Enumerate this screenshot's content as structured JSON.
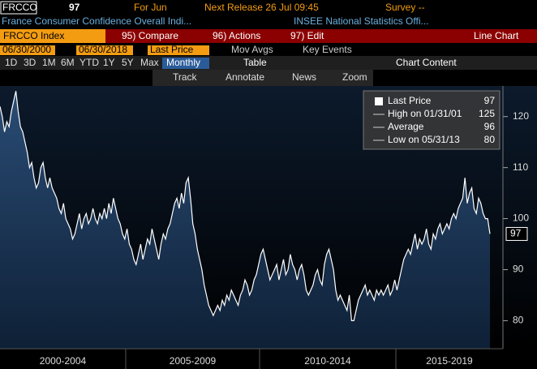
{
  "header": {
    "ticker": "FRCCO",
    "price": 97,
    "period": "For Jun",
    "next_release": "Next Release 26 Jul 09:45",
    "survey": "Survey --",
    "description": "France Consumer Confidence Overall Indi...",
    "source": "INSEE National Statistics Offi..."
  },
  "toolbar": {
    "security": "FRCCO Index",
    "menu": [
      "95) Compare",
      "96) Actions",
      "97) Edit"
    ],
    "view": "Line Chart",
    "start_date": "06/30/2000",
    "end_date": "06/30/2018",
    "field": "Last Price",
    "options": [
      "Mov Avgs",
      "Key Events"
    ],
    "ranges": [
      "1D",
      "3D",
      "1M",
      "6M",
      "YTD",
      "1Y",
      "5Y",
      "Max"
    ],
    "frequency": "Monthly",
    "table": "Table",
    "chart_content": "Chart Content",
    "tools": [
      "Track",
      "Annotate",
      "News",
      "Zoom"
    ]
  },
  "chart_data": {
    "type": "line",
    "color": "#ffffff",
    "values": [
      122,
      120,
      117,
      119,
      118,
      121,
      123,
      125,
      121,
      118,
      117,
      115,
      113,
      110,
      111,
      108,
      106,
      107,
      110,
      111,
      108,
      106,
      108,
      106,
      105,
      104,
      102,
      101,
      103,
      100,
      99,
      98,
      96,
      97,
      99,
      101,
      98,
      100,
      101,
      99,
      100,
      102,
      100,
      99,
      101,
      100,
      102,
      100,
      103,
      101,
      104,
      102,
      100,
      99,
      97,
      96,
      98,
      95,
      94,
      92,
      91,
      93,
      95,
      92,
      94,
      96,
      95,
      98,
      96,
      94,
      92,
      95,
      97,
      96,
      98,
      99,
      101,
      103,
      104,
      102,
      105,
      103,
      107,
      108,
      104,
      99,
      97,
      94,
      92,
      90,
      87,
      85,
      83,
      82,
      81,
      82,
      83,
      82,
      84,
      83,
      85,
      84,
      86,
      85,
      84,
      83,
      85,
      86,
      88,
      87,
      85,
      86,
      88,
      89,
      91,
      93,
      94,
      92,
      90,
      88,
      89,
      90,
      91,
      88,
      90,
      92,
      89,
      90,
      93,
      91,
      90,
      88,
      90,
      91,
      89,
      86,
      85,
      86,
      87,
      89,
      90,
      88,
      87,
      91,
      93,
      94,
      92,
      90,
      86,
      84,
      85,
      84,
      83,
      82,
      85,
      80,
      80,
      82,
      84,
      85,
      86,
      87,
      85,
      86,
      85,
      84,
      86,
      85,
      86,
      85,
      86,
      87,
      85,
      86,
      88,
      86,
      88,
      90,
      92,
      93,
      94,
      93,
      95,
      97,
      94,
      96,
      95,
      96,
      98,
      95,
      94,
      97,
      96,
      98,
      99,
      97,
      98,
      99,
      98,
      100,
      101,
      100,
      102,
      103,
      104,
      108,
      103,
      105,
      106,
      102,
      101,
      104,
      103,
      101,
      100,
      100,
      97
    ],
    "x_labels": [
      "2000-2004",
      "2005-2009",
      "2010-2014",
      "2015-2019"
    ],
    "ylim": [
      74.5,
      126
    ],
    "yticks": [
      80,
      90,
      100,
      110,
      120
    ],
    "legend": [
      {
        "label": "Last Price",
        "value": 97
      },
      {
        "label": "High on 01/31/01",
        "value": 125
      },
      {
        "label": "Average",
        "value": 96
      },
      {
        "label": "Low on 05/31/13",
        "value": 80
      }
    ]
  }
}
